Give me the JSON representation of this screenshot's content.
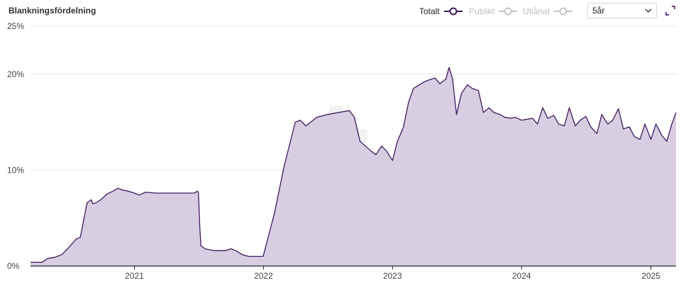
{
  "header": {
    "title": "Blankningsfördelning",
    "legend": [
      {
        "label": "Totalt",
        "active": true,
        "color": "#3f1a5a"
      },
      {
        "label": "Publikt",
        "active": false,
        "color": "#c4c4c4"
      },
      {
        "label": "Utlånat",
        "active": false,
        "color": "#c4c4c4"
      }
    ],
    "period_select": {
      "value": "5år",
      "icon": "chevron-down-icon"
    },
    "expand_icon": "expand-icon"
  },
  "colors": {
    "line": "#3f1a5a",
    "fill": "#d5cbe0",
    "grid": "#e4e4e4",
    "baseline": "#222222",
    "watermark": "#f3f3f3"
  },
  "chart_data": {
    "type": "area",
    "title": "Blankningsfördelning",
    "xlabel": "",
    "ylabel": "",
    "y_ticks": [
      "0%",
      "10%",
      "20%",
      "25%"
    ],
    "y_tick_values": [
      0,
      10,
      20,
      25
    ],
    "ylim": [
      0,
      25
    ],
    "x_tick_labels": [
      "2021",
      "2022",
      "2023",
      "2024",
      "2025"
    ],
    "x_tick_dates": [
      "2021-01-01",
      "2022-01-01",
      "2023-01-01",
      "2024-01-01",
      "2025-01-01"
    ],
    "xlim": [
      "2020-03-13",
      "2025-03-13"
    ],
    "grid": true,
    "legend_placement": "top-right",
    "series": [
      {
        "name": "Totalt",
        "x": [
          "2020-03-13",
          "2020-04-15",
          "2020-05-01",
          "2020-05-20",
          "2020-06-10",
          "2020-07-01",
          "2020-07-20",
          "2020-08-01",
          "2020-08-20",
          "2020-09-01",
          "2020-09-05",
          "2020-09-15",
          "2020-10-01",
          "2020-10-15",
          "2020-11-01",
          "2020-11-15",
          "2020-12-01",
          "2020-12-15",
          "2021-01-01",
          "2021-01-15",
          "2021-02-01",
          "2021-03-01",
          "2021-04-01",
          "2021-05-01",
          "2021-06-01",
          "2021-06-20",
          "2021-06-28",
          "2021-07-01",
          "2021-07-05",
          "2021-07-08",
          "2021-07-20",
          "2021-08-15",
          "2021-09-15",
          "2021-10-01",
          "2021-10-15",
          "2021-11-01",
          "2021-11-20",
          "2021-12-10",
          "2021-12-31",
          "2022-02-01",
          "2022-03-01",
          "2022-04-01",
          "2022-04-15",
          "2022-05-01",
          "2022-06-01",
          "2022-07-01",
          "2022-08-01",
          "2022-09-01",
          "2022-09-15",
          "2022-10-01",
          "2022-11-01",
          "2022-11-15",
          "2022-12-01",
          "2022-12-15",
          "2023-01-01",
          "2023-01-15",
          "2023-02-01",
          "2023-02-15",
          "2023-03-01",
          "2023-04-01",
          "2023-04-15",
          "2023-05-01",
          "2023-05-15",
          "2023-06-01",
          "2023-06-10",
          "2023-06-20",
          "2023-07-01",
          "2023-07-15",
          "2023-08-01",
          "2023-08-15",
          "2023-09-01",
          "2023-09-15",
          "2023-10-01",
          "2023-10-15",
          "2023-11-01",
          "2023-11-15",
          "2023-12-01",
          "2023-12-15",
          "2024-01-01",
          "2024-02-01",
          "2024-02-15",
          "2024-03-01",
          "2024-03-15",
          "2024-04-01",
          "2024-04-15",
          "2024-05-01",
          "2024-05-15",
          "2024-06-01",
          "2024-06-15",
          "2024-07-01",
          "2024-07-15",
          "2024-08-01",
          "2024-08-15",
          "2024-09-01",
          "2024-09-15",
          "2024-10-01",
          "2024-10-15",
          "2024-11-01",
          "2024-11-15",
          "2024-12-01",
          "2024-12-15",
          "2025-01-01",
          "2025-01-15",
          "2025-02-01",
          "2025-02-15",
          "2025-03-01",
          "2025-03-13"
        ],
        "y": [
          0.4,
          0.4,
          0.8,
          0.9,
          1.2,
          2.0,
          2.8,
          3.0,
          6.6,
          6.9,
          6.5,
          6.6,
          7.0,
          7.5,
          7.8,
          8.1,
          7.9,
          7.8,
          7.6,
          7.4,
          7.7,
          7.6,
          7.6,
          7.6,
          7.6,
          7.6,
          7.8,
          7.7,
          4.0,
          2.1,
          1.8,
          1.6,
          1.6,
          1.8,
          1.6,
          1.2,
          1.0,
          1.0,
          1.0,
          5.5,
          10.5,
          15.0,
          15.2,
          14.6,
          15.5,
          15.8,
          16.0,
          16.2,
          15.5,
          13.0,
          12.0,
          11.6,
          12.5,
          12.0,
          11.0,
          13.0,
          14.5,
          17.0,
          18.5,
          19.2,
          19.4,
          19.6,
          19.0,
          19.5,
          20.7,
          19.5,
          15.8,
          18.0,
          18.9,
          18.5,
          18.3,
          16.0,
          16.5,
          16.0,
          15.8,
          15.5,
          15.4,
          15.5,
          15.2,
          15.4,
          14.8,
          16.5,
          15.4,
          15.7,
          14.8,
          14.6,
          16.5,
          14.6,
          15.2,
          15.6,
          14.5,
          13.8,
          15.8,
          14.8,
          15.2,
          16.4,
          14.3,
          14.5,
          13.5,
          13.2,
          14.8,
          13.2,
          14.8,
          13.6,
          13.0,
          14.8,
          16.0
        ]
      }
    ]
  }
}
